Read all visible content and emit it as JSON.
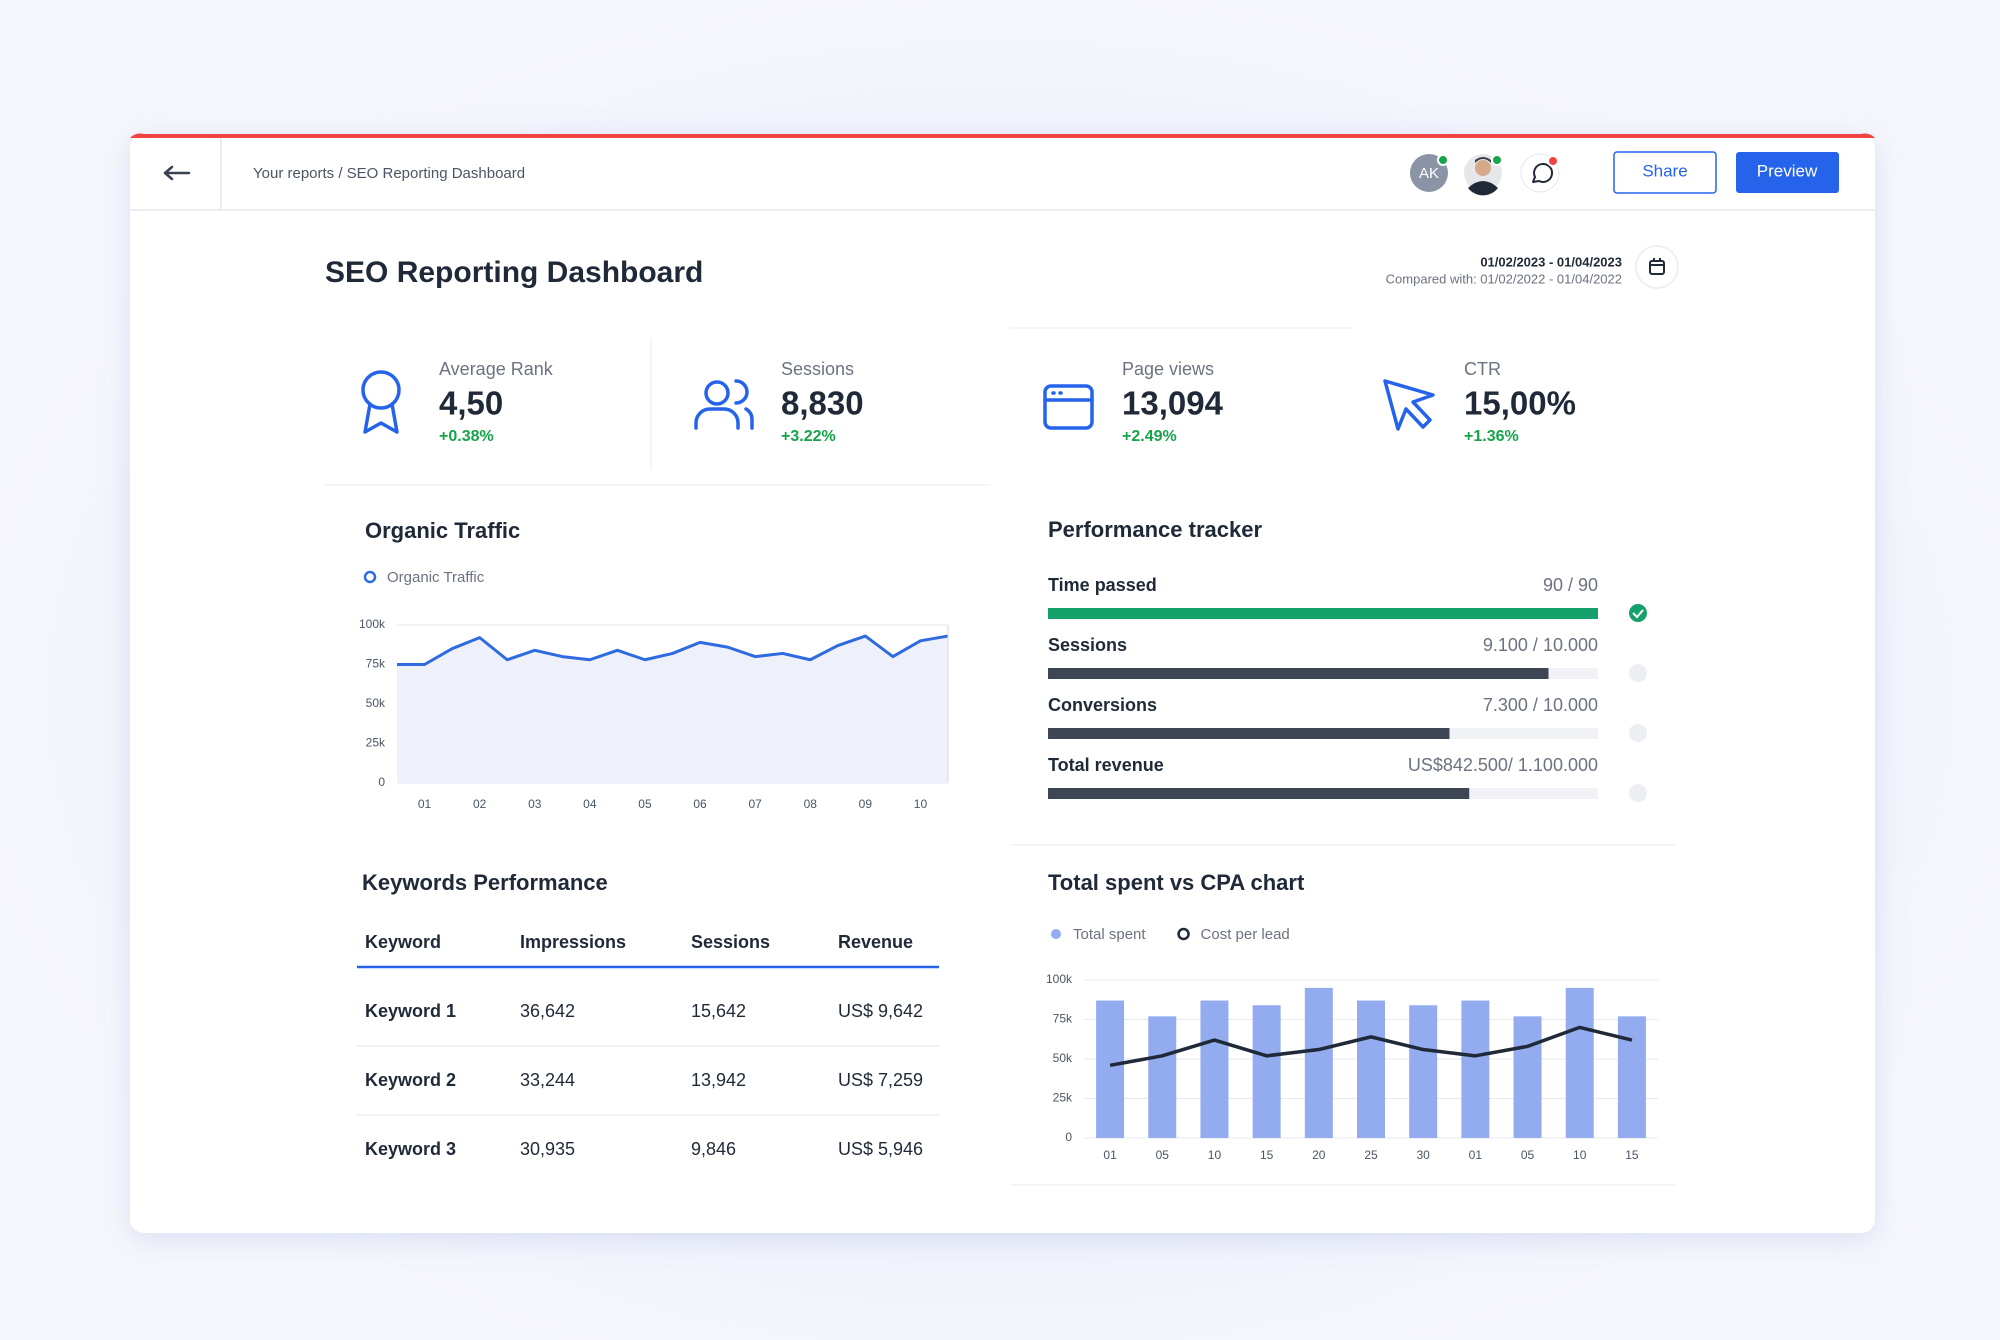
{
  "header": {
    "breadcrumb": "Your reports / SEO Reporting Dashboard",
    "avatar_initials": "AK",
    "buttons": [
      "Share",
      "Preview"
    ]
  },
  "title": "SEO Reporting Dashboard",
  "date_range": {
    "current": "01/02/2023 - 01/04/2023",
    "compared": "Compared with: 01/02/2022 - 01/04/2022"
  },
  "kpis": [
    {
      "label": "Average Rank",
      "value": "4,50",
      "change": "+0.38%"
    },
    {
      "label": "Sessions",
      "value": "8,830",
      "change": "+3.22%"
    },
    {
      "label": "Page views",
      "value": "13,094",
      "change": "+2.49%"
    },
    {
      "label": "CTR",
      "value": "15,00%",
      "change": "+1.36%"
    }
  ],
  "chart_data": [
    {
      "type": "line",
      "title": "Organic Traffic",
      "area": true,
      "grid": true,
      "categories": [
        null,
        "01",
        null,
        "02",
        null,
        "03",
        null,
        "04",
        null,
        "05",
        null,
        "06",
        null,
        "07",
        null,
        "08",
        null,
        "09",
        null,
        "10",
        null
      ],
      "series": [
        {
          "name": "Organic Traffic",
          "color": "#2f6be0",
          "values": [
            75000,
            75000,
            85000,
            92000,
            78000,
            84000,
            80000,
            78000,
            84000,
            78000,
            82000,
            89000,
            86000,
            80000,
            82000,
            78000,
            87000,
            93000,
            80000,
            90000,
            93000
          ]
        }
      ],
      "ylim": [
        0,
        100000
      ],
      "yticks": [
        0,
        {
          "value": 25000,
          "label": "25k"
        },
        {
          "value": 50000,
          "label": "50k"
        },
        {
          "value": 75000,
          "label": "75k"
        },
        {
          "value": 100000,
          "label": "100k"
        }
      ]
    },
    {
      "type": "combo",
      "title": "Total spent vs CPA chart",
      "grid": true,
      "categories": [
        "01",
        "05",
        "10",
        "15",
        "20",
        "25",
        "30",
        "01",
        "05",
        "10",
        "15"
      ],
      "series": [
        {
          "name": "Total spent",
          "kind": "bar",
          "color": "#93acf0",
          "values": [
            87000,
            77000,
            87000,
            84000,
            95000,
            87000,
            84000,
            87000,
            77000,
            95000,
            77000
          ]
        },
        {
          "name": "Cost per lead",
          "kind": "line",
          "color": "#1f2937",
          "values": [
            46000,
            52000,
            62000,
            52000,
            56000,
            64000,
            56000,
            52000,
            58000,
            70000,
            62000
          ]
        }
      ],
      "ylim": [
        0,
        100000
      ],
      "yticks": [
        0,
        {
          "value": 25000,
          "label": "25k"
        },
        {
          "value": 50000,
          "label": "50k"
        },
        {
          "value": 75000,
          "label": "75k"
        },
        {
          "value": 100000,
          "label": "100k"
        }
      ]
    }
  ],
  "performance_tracker": {
    "title": "Performance tracker",
    "rows": [
      {
        "label": "Time passed",
        "value": 90,
        "target": 90,
        "value_label": "90 / 90",
        "done": true
      },
      {
        "label": "Sessions",
        "value": 9100,
        "target": 10000,
        "value_label": "9.100 / 10.000",
        "done": false
      },
      {
        "label": "Conversions",
        "value": 7300,
        "target": 10000,
        "value_label": "7.300 / 10.000",
        "done": false
      },
      {
        "label": "Total revenue",
        "value": 842500,
        "target": 1100000,
        "value_label": "US$842.500/ 1.100.000",
        "done": false
      }
    ]
  },
  "keywords": {
    "title": "Keywords Performance",
    "columns": [
      "Keyword",
      "Impressions",
      "Sessions",
      "Revenue"
    ],
    "rows": [
      [
        "Keyword 1",
        "36,642",
        "15,642",
        "US$ 9,642"
      ],
      [
        "Keyword 2",
        "33,244",
        "13,942",
        "US$ 7,259"
      ],
      [
        "Keyword 3",
        "30,935",
        "9,846",
        "US$ 5,946"
      ]
    ]
  }
}
